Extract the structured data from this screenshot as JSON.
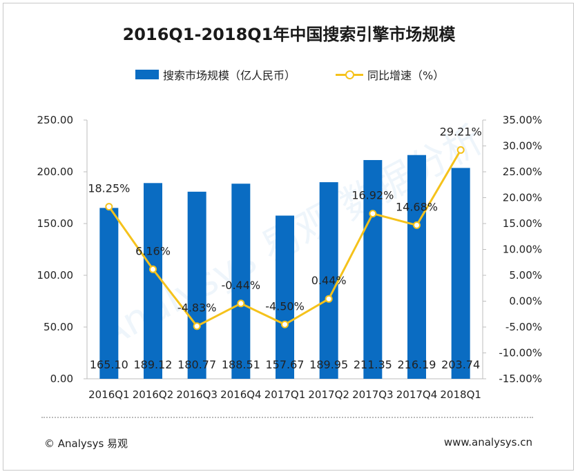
{
  "title": "2016Q1-2018Q1年中国搜索引擎市场规模",
  "legend": {
    "bar_label": "搜索市场规模（亿人民币）",
    "line_label": "同比增速（%）"
  },
  "footer": {
    "copyright": "© Analysys 易观",
    "website": "www.analysys.cn"
  },
  "watermark": "Analysys 易观 数据分析",
  "colors": {
    "bar": "#0a6cc2",
    "line": "#f5c21b",
    "axis": "#bdbdbd"
  },
  "chart_data": {
    "type": "bar",
    "title": "2016Q1-2018Q1年中国搜索引擎市场规模",
    "categories": [
      "2016Q1",
      "2016Q2",
      "2016Q3",
      "2016Q4",
      "2017Q1",
      "2017Q2",
      "2017Q3",
      "2017Q4",
      "2018Q1"
    ],
    "series": [
      {
        "name": "搜索市场规模（亿人民币）",
        "type": "bar",
        "axis": "left",
        "values": [
          165.1,
          189.12,
          180.77,
          188.51,
          157.67,
          189.95,
          211.35,
          216.19,
          203.74
        ],
        "labels": [
          "165.10",
          "189.12",
          "180.77",
          "188.51",
          "157.67",
          "189.95",
          "211.35",
          "216.19",
          "203.74"
        ]
      },
      {
        "name": "同比增速（%）",
        "type": "line",
        "axis": "right",
        "values": [
          18.25,
          6.16,
          -4.83,
          -0.44,
          -4.5,
          0.44,
          16.92,
          14.68,
          29.21
        ],
        "labels": [
          "18.25%",
          "6.16%",
          "-4.83%",
          "-0.44%",
          "-4.50%",
          "0.44%",
          "16.92%",
          "14.68%",
          "29.21%"
        ]
      }
    ],
    "left_axis": {
      "min": 0,
      "max": 250,
      "ticks": [
        "0.00",
        "50.00",
        "100.00",
        "150.00",
        "200.00",
        "250.00"
      ]
    },
    "right_axis": {
      "min": -15,
      "max": 35,
      "ticks": [
        "-15.00%",
        "-10.00%",
        "-5.00%",
        "0.00%",
        "5.00%",
        "10.00%",
        "15.00%",
        "20.00%",
        "25.00%",
        "30.00%",
        "35.00%"
      ]
    },
    "grid": false,
    "legend_position": "top"
  }
}
